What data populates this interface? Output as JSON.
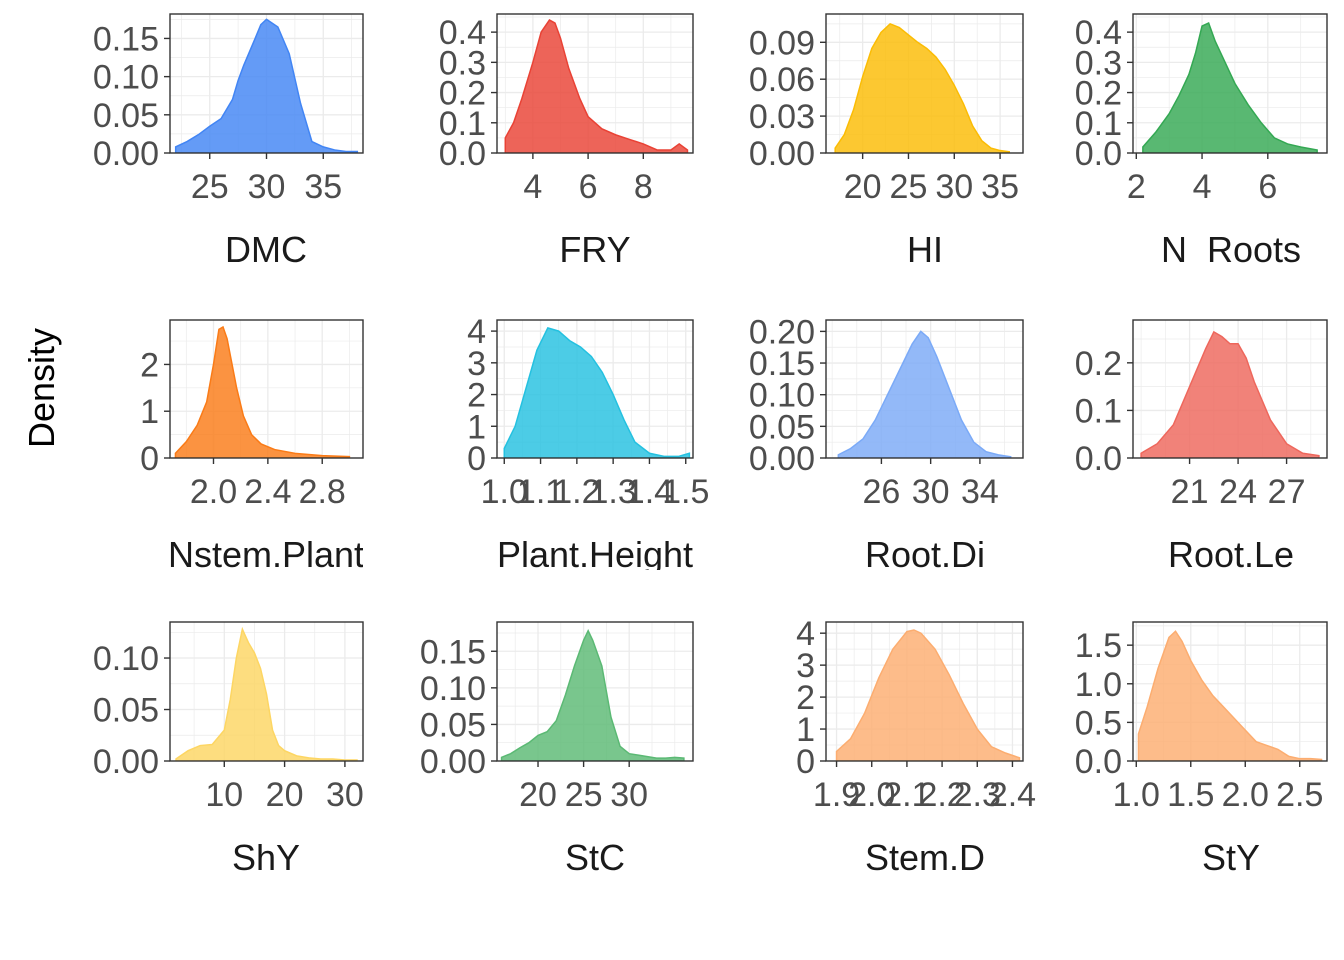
{
  "figure": {
    "y_axis_title": "Density"
  },
  "chart_data": [
    {
      "type": "area",
      "xlabel": "DMC",
      "xlim": [
        21.5,
        38.5
      ],
      "ylim": [
        0,
        0.182
      ],
      "xticks": [
        25,
        30,
        35
      ],
      "xtick_labels": [
        "25",
        "30",
        "35"
      ],
      "yticks": [
        0,
        0.05,
        0.1,
        0.15
      ],
      "ytick_labels": [
        "0.00",
        "0.05",
        "0.10",
        "0.15"
      ],
      "color": "#4285f4",
      "x": [
        22,
        23,
        24,
        25,
        26,
        27,
        27.5,
        28,
        29,
        29.5,
        30,
        31,
        32,
        33,
        34,
        35,
        36,
        37,
        38
      ],
      "y": [
        0.008,
        0.015,
        0.024,
        0.035,
        0.045,
        0.07,
        0.095,
        0.115,
        0.15,
        0.168,
        0.175,
        0.165,
        0.13,
        0.065,
        0.015,
        0.008,
        0.004,
        0.002,
        0.002
      ]
    },
    {
      "type": "area",
      "xlabel": "FRY",
      "xlim": [
        2.7,
        9.8
      ],
      "ylim": [
        0,
        0.46
      ],
      "xticks": [
        4,
        6,
        8
      ],
      "xtick_labels": [
        "4",
        "6",
        "8"
      ],
      "yticks": [
        0,
        0.1,
        0.2,
        0.3,
        0.4
      ],
      "ytick_labels": [
        "0.0",
        "0.1",
        "0.2",
        "0.3",
        "0.4"
      ],
      "color": "#e94235",
      "x": [
        3,
        3.3,
        3.6,
        4,
        4.3,
        4.6,
        4.8,
        5,
        5.3,
        5.7,
        6,
        6.5,
        7,
        7.5,
        8,
        8.5,
        9,
        9.3,
        9.6
      ],
      "y": [
        0.05,
        0.1,
        0.18,
        0.3,
        0.4,
        0.44,
        0.43,
        0.38,
        0.28,
        0.18,
        0.12,
        0.08,
        0.06,
        0.045,
        0.03,
        0.01,
        0.01,
        0.03,
        0.01
      ]
    },
    {
      "type": "area",
      "xlabel": "HI",
      "xlim": [
        16,
        37.5
      ],
      "ylim": [
        0,
        0.113
      ],
      "xticks": [
        20,
        25,
        30,
        35
      ],
      "xtick_labels": [
        "20",
        "25",
        "30",
        "35"
      ],
      "yticks": [
        0,
        0.03,
        0.06,
        0.09
      ],
      "ytick_labels": [
        "0.00",
        "0.03",
        "0.06",
        "0.09"
      ],
      "color": "#fbbc04",
      "x": [
        17,
        18,
        19,
        20,
        21,
        22,
        23,
        24,
        25,
        26,
        27,
        28,
        29,
        30,
        31,
        32,
        33,
        34,
        35,
        36
      ],
      "y": [
        0.004,
        0.015,
        0.035,
        0.062,
        0.085,
        0.098,
        0.105,
        0.102,
        0.096,
        0.09,
        0.085,
        0.078,
        0.068,
        0.055,
        0.04,
        0.022,
        0.01,
        0.004,
        0.002,
        0.001
      ]
    },
    {
      "type": "area",
      "xlabel": "N_Roots",
      "xlim": [
        1.9,
        7.8
      ],
      "ylim": [
        0,
        0.46
      ],
      "xticks": [
        2,
        4,
        6
      ],
      "xtick_labels": [
        "2",
        "4",
        "6"
      ],
      "yticks": [
        0,
        0.1,
        0.2,
        0.3,
        0.4
      ],
      "ytick_labels": [
        "0.0",
        "0.1",
        "0.2",
        "0.3",
        "0.4"
      ],
      "color": "#34a853",
      "x": [
        2.2,
        2.6,
        3,
        3.3,
        3.6,
        3.8,
        4,
        4.2,
        4.4,
        4.7,
        5,
        5.4,
        5.8,
        6.2,
        6.6,
        7,
        7.5
      ],
      "y": [
        0.02,
        0.07,
        0.13,
        0.19,
        0.26,
        0.33,
        0.42,
        0.43,
        0.37,
        0.3,
        0.23,
        0.16,
        0.1,
        0.05,
        0.03,
        0.02,
        0.01
      ]
    },
    {
      "type": "area",
      "xlabel": "Nstem.Plant",
      "xlim": [
        1.68,
        3.1
      ],
      "ylim": [
        0,
        2.95
      ],
      "xticks": [
        2.0,
        2.4,
        2.8
      ],
      "xtick_labels": [
        "2.0",
        "2.4",
        "2.8"
      ],
      "color": "#fa7b17",
      "yticks": [
        0,
        1,
        2
      ],
      "ytick_labels": [
        "0",
        "1",
        "2"
      ],
      "x": [
        1.72,
        1.8,
        1.88,
        1.95,
        2.0,
        2.04,
        2.07,
        2.1,
        2.13,
        2.17,
        2.22,
        2.28,
        2.35,
        2.45,
        2.6,
        2.8,
        3.0
      ],
      "y": [
        0.1,
        0.35,
        0.7,
        1.2,
        2.0,
        2.75,
        2.8,
        2.55,
        2.1,
        1.5,
        0.9,
        0.5,
        0.3,
        0.18,
        0.1,
        0.05,
        0.03
      ]
    },
    {
      "type": "area",
      "xlabel": "Plant.Height",
      "xlim": [
        0.98,
        1.52
      ],
      "ylim": [
        0,
        4.35
      ],
      "xticks": [
        1.0,
        1.1,
        1.2,
        1.3,
        1.4,
        1.5
      ],
      "xtick_labels": [
        "1.0",
        "1.1",
        "1.2",
        "1.3",
        "1.4",
        "1.5"
      ],
      "yticks": [
        0,
        1,
        2,
        3,
        4
      ],
      "ytick_labels": [
        "0",
        "1",
        "2",
        "3",
        "4"
      ],
      "color": "#24c1e0",
      "x": [
        1.0,
        1.03,
        1.06,
        1.09,
        1.12,
        1.15,
        1.18,
        1.21,
        1.24,
        1.27,
        1.3,
        1.33,
        1.36,
        1.4,
        1.44,
        1.48,
        1.51
      ],
      "y": [
        0.3,
        1.0,
        2.2,
        3.4,
        4.1,
        4.0,
        3.7,
        3.5,
        3.2,
        2.7,
        2.0,
        1.2,
        0.5,
        0.15,
        0.05,
        0.05,
        0.15
      ]
    },
    {
      "type": "area",
      "xlabel": "Root.Di",
      "xlim": [
        21.5,
        37.5
      ],
      "ylim": [
        0,
        0.218
      ],
      "xticks": [
        26,
        30,
        34
      ],
      "xtick_labels": [
        "26",
        "30",
        "34"
      ],
      "yticks": [
        0,
        0.05,
        0.1,
        0.15,
        0.2
      ],
      "ytick_labels": [
        "0.00",
        "0.05",
        "0.10",
        "0.15",
        "0.20"
      ],
      "color": "#7baaf7",
      "x": [
        22.5,
        23.5,
        24.5,
        25.5,
        26.5,
        27.5,
        28.5,
        29.2,
        29.8,
        30.5,
        31.5,
        32.5,
        33.5,
        34.5,
        35.5,
        36.5
      ],
      "y": [
        0.005,
        0.015,
        0.03,
        0.06,
        0.1,
        0.14,
        0.18,
        0.2,
        0.19,
        0.16,
        0.11,
        0.06,
        0.025,
        0.01,
        0.005,
        0.002
      ]
    },
    {
      "type": "area",
      "xlabel": "Root.Le",
      "xlim": [
        17.5,
        29.5
      ],
      "ylim": [
        0,
        0.29
      ],
      "xticks": [
        21,
        24,
        27
      ],
      "xtick_labels": [
        "21",
        "24",
        "27"
      ],
      "yticks": [
        0,
        0.1,
        0.2
      ],
      "ytick_labels": [
        "0.0",
        "0.1",
        "0.2"
      ],
      "color": "#ee675c",
      "x": [
        18,
        19,
        20,
        21,
        22,
        22.5,
        23,
        23.5,
        24,
        24.5,
        25,
        26,
        27,
        28,
        29
      ],
      "y": [
        0.01,
        0.03,
        0.07,
        0.15,
        0.23,
        0.265,
        0.255,
        0.24,
        0.24,
        0.21,
        0.16,
        0.08,
        0.03,
        0.01,
        0.005
      ]
    },
    {
      "type": "area",
      "xlabel": "ShY",
      "xlim": [
        1,
        33
      ],
      "ylim": [
        0,
        0.135
      ],
      "xticks": [
        10,
        20,
        30
      ],
      "xtick_labels": [
        "10",
        "20",
        "30"
      ],
      "yticks": [
        0,
        0.05,
        0.1
      ],
      "ytick_labels": [
        "0.00",
        "0.05",
        "0.10"
      ],
      "color": "#fdd663",
      "x": [
        2,
        4,
        6,
        8,
        10,
        11,
        12,
        13,
        14,
        15,
        16,
        17,
        18,
        19,
        20,
        22,
        24,
        26,
        28,
        30,
        32
      ],
      "y": [
        0.002,
        0.01,
        0.015,
        0.016,
        0.03,
        0.06,
        0.1,
        0.128,
        0.115,
        0.105,
        0.09,
        0.065,
        0.03,
        0.015,
        0.01,
        0.005,
        0.003,
        0.002,
        0.002,
        0.001,
        0.001
      ]
    },
    {
      "type": "area",
      "xlabel": "StC",
      "xlim": [
        15.5,
        37
      ],
      "ylim": [
        0,
        0.19
      ],
      "xticks": [
        20,
        25,
        30
      ],
      "xtick_labels": [
        "20",
        "25",
        "30"
      ],
      "yticks": [
        0,
        0.05,
        0.1,
        0.15
      ],
      "ytick_labels": [
        "0.00",
        "0.05",
        "0.10",
        "0.15"
      ],
      "color": "#5bb974",
      "x": [
        16,
        17,
        18,
        19,
        20,
        21,
        22,
        23,
        24,
        25,
        25.5,
        26,
        27,
        28,
        29,
        30,
        31,
        32,
        33,
        34,
        35,
        36
      ],
      "y": [
        0.005,
        0.01,
        0.018,
        0.025,
        0.035,
        0.04,
        0.055,
        0.09,
        0.13,
        0.165,
        0.178,
        0.165,
        0.13,
        0.06,
        0.02,
        0.01,
        0.008,
        0.006,
        0.004,
        0.004,
        0.005,
        0.004
      ]
    },
    {
      "type": "area",
      "xlabel": "Stem.D",
      "xlim": [
        1.87,
        2.43
      ],
      "ylim": [
        0,
        4.35
      ],
      "xticks": [
        1.9,
        2.0,
        2.1,
        2.2,
        2.3,
        2.4
      ],
      "xtick_labels": [
        "1.9",
        "2.0",
        "2.1",
        "2.2",
        "2.3",
        "2.4"
      ],
      "yticks": [
        0,
        1,
        2,
        3,
        4
      ],
      "ytick_labels": [
        "0",
        "1",
        "2",
        "3",
        "4"
      ],
      "color": "#fcad70",
      "x": [
        1.9,
        1.94,
        1.98,
        2.02,
        2.06,
        2.1,
        2.12,
        2.14,
        2.18,
        2.22,
        2.26,
        2.3,
        2.34,
        2.38,
        2.42
      ],
      "y": [
        0.3,
        0.7,
        1.5,
        2.6,
        3.5,
        4.05,
        4.1,
        4.0,
        3.5,
        2.7,
        1.8,
        1.0,
        0.45,
        0.25,
        0.1
      ]
    },
    {
      "type": "area",
      "xlabel": "StY",
      "xlim": [
        0.97,
        2.75
      ],
      "ylim": [
        0,
        1.8
      ],
      "xticks": [
        1.0,
        1.5,
        2.0,
        2.5
      ],
      "xtick_labels": [
        "1.0",
        "1.5",
        "2.0",
        "2.5"
      ],
      "yticks": [
        0,
        0.5,
        1.0,
        1.5
      ],
      "ytick_labels": [
        "0.0",
        "0.5",
        "1.0",
        "1.5"
      ],
      "color": "#fcad70",
      "x": [
        1.02,
        1.1,
        1.2,
        1.3,
        1.36,
        1.42,
        1.5,
        1.6,
        1.7,
        1.8,
        1.9,
        2.0,
        2.1,
        2.2,
        2.3,
        2.4,
        2.5,
        2.6,
        2.7
      ],
      "y": [
        0.35,
        0.7,
        1.2,
        1.6,
        1.68,
        1.55,
        1.3,
        1.05,
        0.85,
        0.7,
        0.55,
        0.4,
        0.25,
        0.2,
        0.15,
        0.06,
        0.03,
        0.03,
        0.02
      ]
    }
  ]
}
